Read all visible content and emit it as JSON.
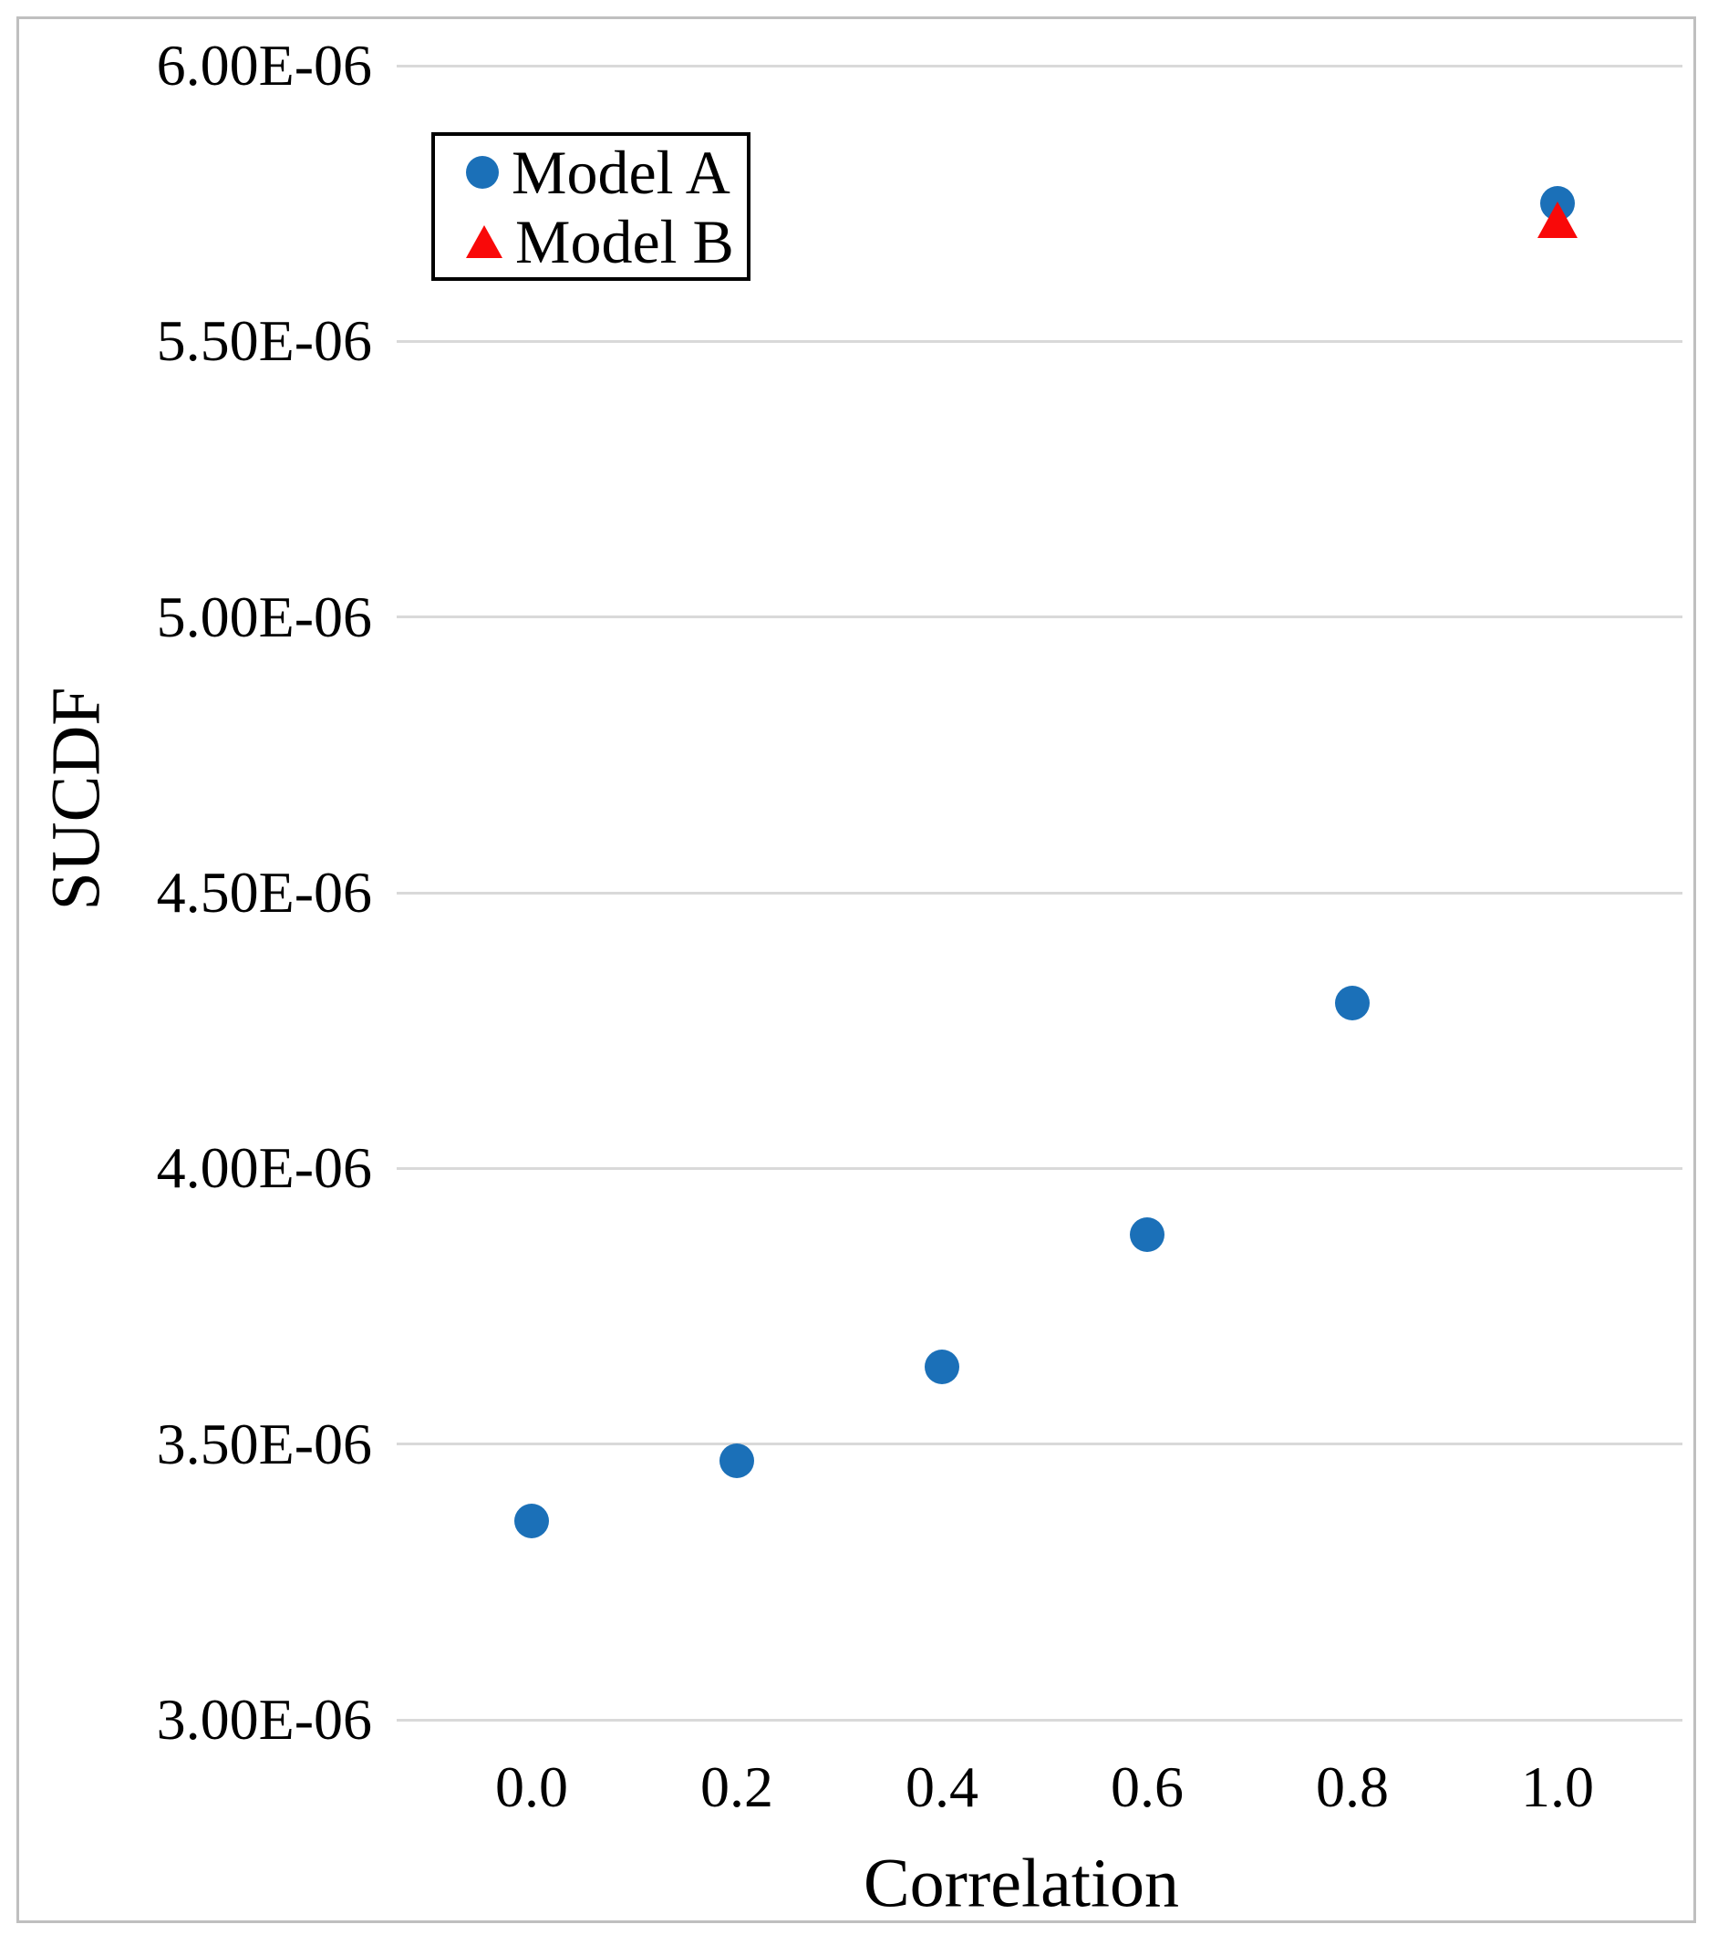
{
  "chart_data": {
    "type": "scatter",
    "title": "",
    "xlabel": "Correlation",
    "ylabel": "SUCDF",
    "ylim": [
      3e-06,
      6e-06
    ],
    "xlim": [
      -0.13,
      1.12
    ],
    "grid": "horizontal",
    "legend_position": "top-left-inside",
    "x_ticks": [
      "0.0",
      "0.2",
      "0.4",
      "0.6",
      "0.8",
      "1.0"
    ],
    "y_ticks": [
      "6.00E-06",
      "5.50E-06",
      "5.00E-06",
      "4.50E-06",
      "4.00E-06",
      "3.50E-06",
      "3.00E-06"
    ],
    "series": [
      {
        "name": "Model A",
        "marker": "circle",
        "color": "#1b70b8",
        "x": [
          0.0,
          0.2,
          0.4,
          0.6,
          0.8,
          1.0
        ],
        "y": [
          3.36e-06,
          3.47e-06,
          3.64e-06,
          3.88e-06,
          4.3e-06,
          5.75e-06
        ]
      },
      {
        "name": "Model B",
        "marker": "triangle",
        "color": "#f90909",
        "x": [
          1.0
        ],
        "y": [
          5.72e-06
        ]
      }
    ]
  },
  "colors": {
    "gridline": "#d9d9d9",
    "frame_border": "#bfbfbf",
    "legend_border": "#000000",
    "text": "#000000"
  }
}
